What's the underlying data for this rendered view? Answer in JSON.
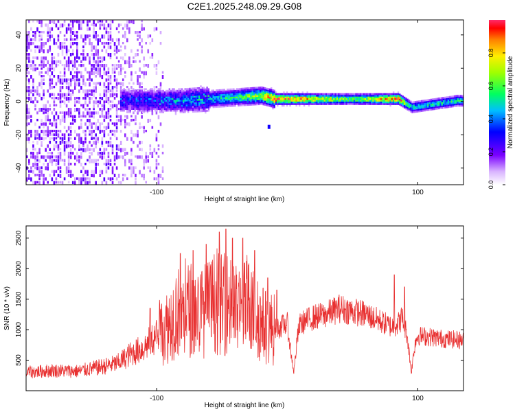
{
  "figure": {
    "title": "C2E1.2025.248.09.29.G08"
  },
  "chart_data": [
    {
      "type": "heatmap",
      "title": "C2E1.2025.248.09.29.G08",
      "xlabel": "Height of straight line (km)",
      "ylabel": "Frequency (Hz)",
      "xlim": [
        -200,
        135
      ],
      "ylim": [
        -50,
        49
      ],
      "xticks": [
        -100,
        100
      ],
      "xtick_labels": [
        "-100",
        "100"
      ],
      "yticks": [
        -40,
        -20,
        0,
        20,
        40
      ],
      "ytick_labels": [
        "-40",
        "-20",
        "0",
        "20",
        "40"
      ],
      "colorbar": {
        "label": "Normalized spectral amplitude",
        "range": [
          0,
          1
        ],
        "ticks": [
          0.0,
          0.2,
          0.4,
          0.6,
          0.8
        ],
        "tick_labels": [
          "0.0",
          "0.2",
          "0.4",
          "0.6",
          "0.8"
        ],
        "colormap": "rainbow (violet to red)"
      },
      "description_points": [
        {
          "x": -200,
          "region": "broadband noise (violet speckle)"
        },
        {
          "x": -120,
          "freq_center": 0,
          "amplitude": 0.35
        },
        {
          "x": -80,
          "freq_center": 0,
          "amplitude": 0.45
        },
        {
          "x": -40,
          "freq_center": 2,
          "amplitude": 0.55
        },
        {
          "x": -20,
          "freq_center": 3,
          "amplitude": 0.75
        },
        {
          "x": -10,
          "freq_center": 1,
          "amplitude": 0.95
        },
        {
          "x": 8,
          "freq_center": 1,
          "amplitude": 0.9
        },
        {
          "x": 50,
          "freq_center": 1,
          "amplitude": 0.6
        },
        {
          "x": 85,
          "freq_center": 1,
          "amplitude": 0.95
        },
        {
          "x": 95,
          "freq_center": -4,
          "amplitude": 0.5
        },
        {
          "x": 130,
          "freq_center": 0,
          "amplitude": 0.55
        }
      ]
    },
    {
      "type": "line",
      "xlabel": "Height of straight line (km)",
      "ylabel": "SNR (10 * v/v)",
      "xlim": [
        -200,
        135
      ],
      "ylim": [
        0,
        2700
      ],
      "xticks": [
        -100,
        100
      ],
      "xtick_labels": [
        "-100",
        "100"
      ],
      "yticks": [
        500,
        1000,
        1500,
        2000,
        2500
      ],
      "ytick_labels": [
        "500",
        "1000",
        "1500",
        "2000",
        "2500"
      ],
      "series": [
        {
          "name": "SNR",
          "color": "#e83030",
          "x": [
            -200,
            -180,
            -160,
            -140,
            -130,
            -120,
            -110,
            -100,
            -95,
            -90,
            -85,
            -80,
            -75,
            -70,
            -65,
            -60,
            -55,
            -50,
            -45,
            -40,
            -35,
            -30,
            -25,
            -20,
            -15,
            -10,
            -5,
            0,
            3,
            5,
            8,
            10,
            15,
            20,
            30,
            40,
            50,
            60,
            70,
            80,
            85,
            88,
            92,
            95,
            98,
            100,
            110,
            120,
            135
          ],
          "values": [
            300,
            330,
            320,
            400,
            450,
            600,
            700,
            900,
            1000,
            1100,
            1300,
            1250,
            1350,
            1300,
            1300,
            1350,
            1450,
            1400,
            1450,
            1300,
            1300,
            1400,
            1250,
            1100,
            1050,
            1000,
            1050,
            1100,
            600,
            300,
            900,
            1100,
            1150,
            1200,
            1250,
            1350,
            1300,
            1250,
            1150,
            1050,
            1100,
            1200,
            900,
            300,
            800,
            900,
            880,
            850,
            830
          ],
          "peaks": [
            [
              -105,
              1350
            ],
            [
              -82,
              2250
            ],
            [
              -72,
              2300
            ],
            [
              -62,
              2400
            ],
            [
              -52,
              2600
            ],
            [
              -47,
              2650
            ],
            [
              -42,
              2500
            ],
            [
              -34,
              2500
            ],
            [
              -25,
              2300
            ],
            [
              -15,
              1850
            ],
            [
              -8,
              1650
            ],
            [
              82,
              1900
            ],
            [
              90,
              1700
            ]
          ]
        }
      ]
    }
  ]
}
